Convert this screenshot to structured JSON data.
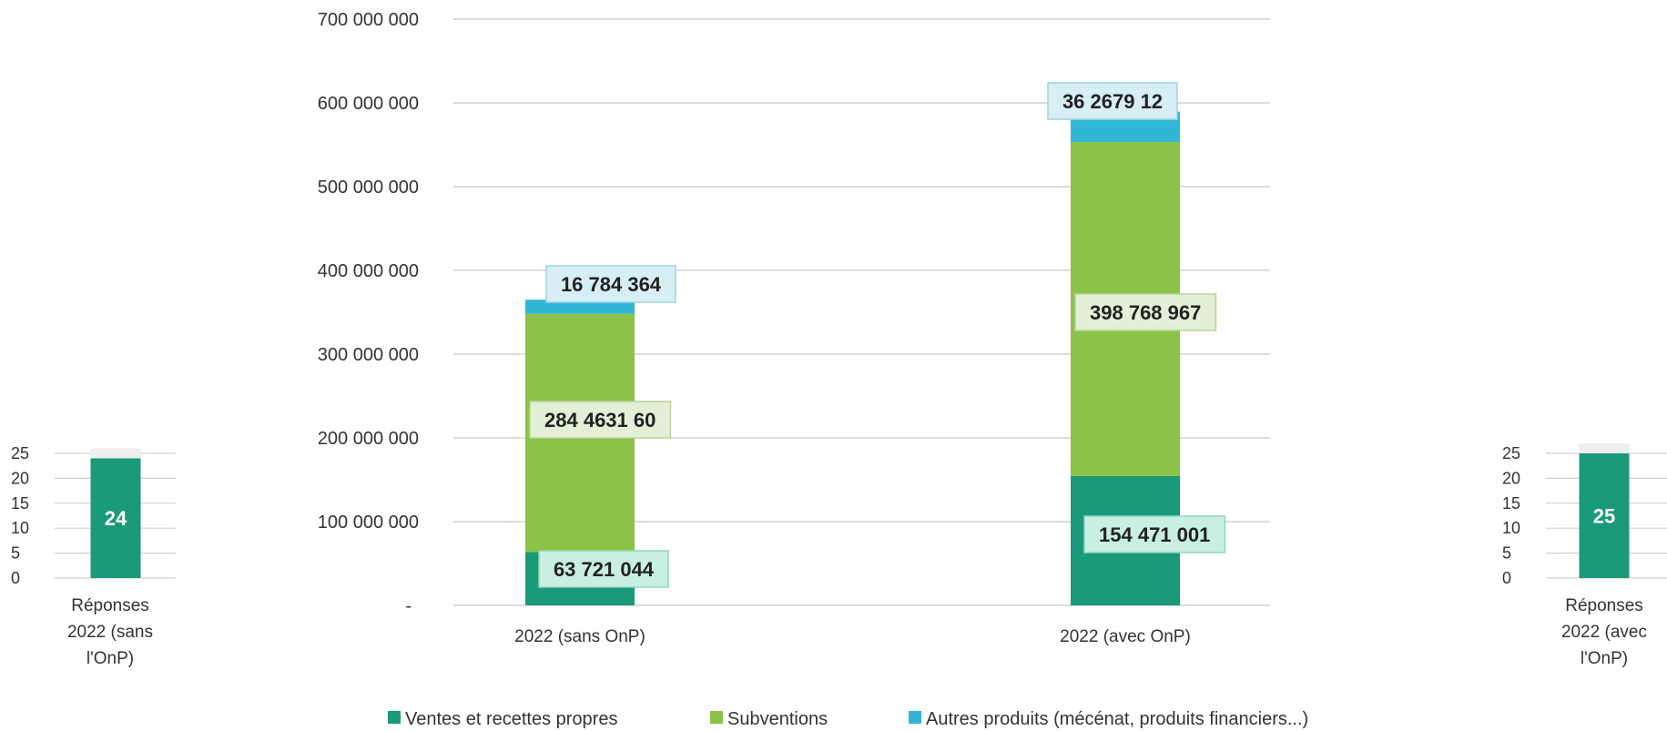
{
  "chart_data": [
    {
      "type": "bar",
      "stacked": true,
      "categories": [
        "Réponses 2022 (sans l'OnP)"
      ],
      "series": [
        {
          "values": [
            24
          ],
          "color": "#1a9a78"
        }
      ],
      "total": 26,
      "data_labels": [
        "24"
      ],
      "ylim": [
        0,
        25
      ],
      "yticks": [
        "25",
        "20",
        "15",
        "10",
        "5",
        "0"
      ],
      "grid": true
    },
    {
      "type": "bar",
      "stacked": true,
      "categories": [
        "2022 (sans OnP)",
        "2022 (avec OnP)"
      ],
      "series": [
        {
          "name": "Ventes et recettes propres",
          "values": [
            63721044,
            154471001
          ],
          "color": "#1a9a78"
        },
        {
          "name": "Subventions",
          "values": [
            284463160,
            398768967
          ],
          "color": "#8cc247"
        },
        {
          "name": "Autres produits (mécénat, produits financiers...)",
          "values": [
            16784364,
            36267912
          ],
          "color": "#31b6d5"
        }
      ],
      "data_labels": [
        [
          "63 721 044",
          "154 471 001"
        ],
        [
          "284 4631 60",
          "398 768 967"
        ],
        [
          "16 784 364",
          "36 2679 12"
        ]
      ],
      "ylim": [
        0,
        700000000
      ],
      "yticks": [
        "-",
        "100 000 000",
        "200 000 000",
        "300 000 000",
        "400 000 000",
        "500 000 000",
        "600 000 000",
        "700 000 000"
      ],
      "grid": true,
      "legend_position": "bottom"
    },
    {
      "type": "bar",
      "stacked": true,
      "categories": [
        "Réponses 2022 (avec l'OnP)"
      ],
      "series": [
        {
          "values": [
            25
          ],
          "color": "#1a9a78"
        }
      ],
      "total": 27,
      "data_labels": [
        "25"
      ],
      "ylim": [
        0,
        25
      ],
      "yticks": [
        "25",
        "20",
        "15",
        "10",
        "5",
        "0"
      ],
      "grid": true
    }
  ],
  "left_chart": {
    "category_lines": [
      "Réponses",
      "2022 (sans",
      "l'OnP)"
    ],
    "bar_label": "24"
  },
  "right_chart": {
    "category_lines": [
      "Réponses",
      "2022 (avec",
      "l'OnP)"
    ],
    "bar_label": "25"
  }
}
